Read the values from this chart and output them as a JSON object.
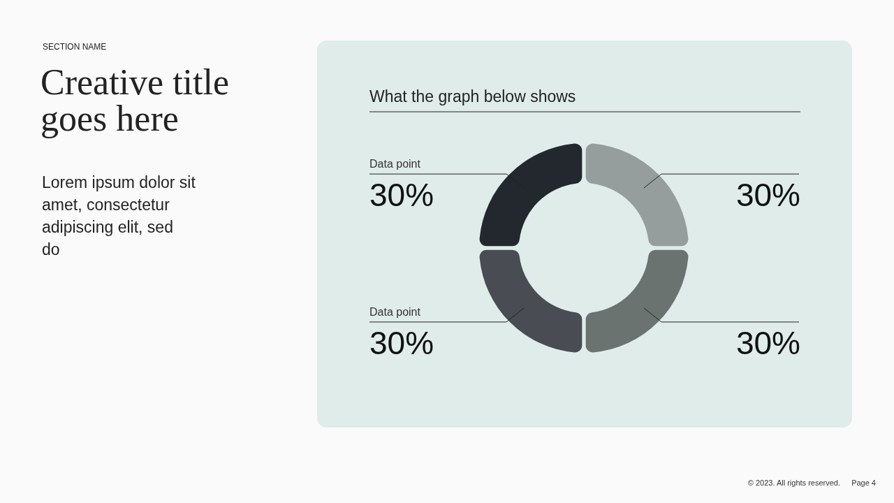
{
  "chart_data": {
    "type": "donut",
    "title": "Creative title goes here",
    "subtitle": "What the graph below shows",
    "categories": [
      null,
      null,
      "Data point",
      "Data point"
    ],
    "values": [
      30,
      30,
      30,
      30
    ],
    "value_labels": [
      "30%",
      "30%",
      "30%",
      "30%"
    ],
    "colors": [
      "#959e9c",
      "#6b7371",
      "#494c53",
      "#23272e"
    ],
    "annotations": [
      "SECTION NAME",
      "Lorem ipsum dolor sit amet, consectetur adipiscing elit, sed do",
      "© 2023. All rights reserved.",
      "Page 4"
    ]
  }
}
